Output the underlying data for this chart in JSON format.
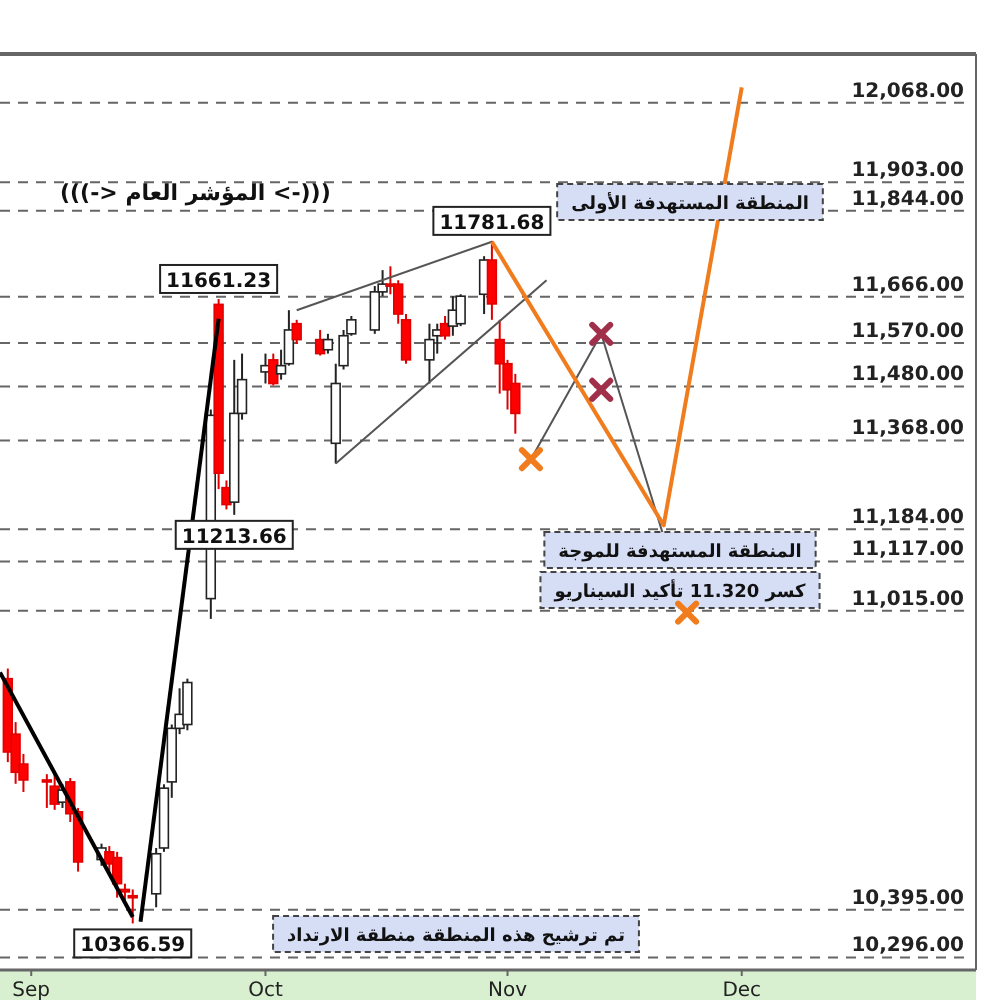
{
  "chart_data": {
    "type": "candlestick",
    "title": "(((-> المؤشر العام <-)))",
    "x": [
      "--08-29",
      "--08-30",
      "--08-31",
      "--09-03",
      "--09-04",
      "--09-05",
      "--09-06",
      "--09-07",
      "--09-10",
      "--09-11",
      "--09-12",
      "--09-13",
      "--09-14",
      "--09-17",
      "--09-18",
      "--09-19",
      "--09-20",
      "--09-21",
      "--09-24",
      "--09-25",
      "--09-26",
      "--09-27",
      "--09-28",
      "--10-01",
      "--10-02",
      "--10-03",
      "--10-04",
      "--10-05",
      "--10-08",
      "--10-09",
      "--10-10",
      "--10-11",
      "--10-12",
      "--10-15",
      "--10-16",
      "--10-17",
      "--10-18",
      "--10-19",
      "--10-22",
      "--10-23",
      "--10-24",
      "--10-25",
      "--10-26",
      "--10-29",
      "--10-30",
      "--10-31",
      "--11-01",
      "--11-02"
    ],
    "ohlc": [
      [
        10874,
        10895,
        10701,
        10722
      ],
      [
        10759,
        10784,
        10656,
        10680
      ],
      [
        10697,
        10718,
        10639,
        10664
      ],
      [
        10664,
        10676,
        10606,
        10660
      ],
      [
        10651,
        10676,
        10602,
        10614
      ],
      [
        10618,
        10655,
        10606,
        10643
      ],
      [
        10660,
        10668,
        10577,
        10594
      ],
      [
        10598,
        10606,
        10474,
        10494
      ],
      [
        10499,
        10532,
        10486,
        10523
      ],
      [
        10515,
        10527,
        10469,
        10490
      ],
      [
        10503,
        10515,
        10420,
        10449
      ],
      [
        10437,
        10449,
        10412,
        10432
      ],
      [
        10424,
        10437,
        10366.59,
        10420
      ],
      [
        10428,
        10523,
        10400,
        10511
      ],
      [
        10523,
        10655,
        10515,
        10647
      ],
      [
        10660,
        10779,
        10627,
        10771
      ],
      [
        10771,
        10854,
        10759,
        10800
      ],
      [
        10779,
        10874,
        10767,
        10866
      ],
      [
        11040,
        11432,
        10998,
        11420
      ],
      [
        11650,
        11661.23,
        11267,
        11300
      ],
      [
        11270,
        11285,
        11225,
        11235
      ],
      [
        11240,
        11535,
        11213.66,
        11424
      ],
      [
        11424,
        11548,
        11411,
        11494
      ],
      [
        11510,
        11548,
        11486,
        11523
      ],
      [
        11535,
        11548,
        11482,
        11486
      ],
      [
        11506,
        11556,
        11494,
        11523
      ],
      [
        11527,
        11638,
        11523,
        11597
      ],
      [
        11610,
        11618,
        11568,
        11577
      ],
      [
        11577,
        11597,
        11544,
        11548
      ],
      [
        11556,
        11589,
        11548,
        11577
      ],
      [
        11362,
        11527,
        11320,
        11486
      ],
      [
        11523,
        11597,
        11515,
        11585
      ],
      [
        11589,
        11626,
        11585,
        11618
      ],
      [
        11597,
        11688,
        11589,
        11676
      ],
      [
        11676,
        11721,
        11667,
        11692
      ],
      [
        11692,
        11729,
        11671,
        11688
      ],
      [
        11692,
        11700,
        11610,
        11630
      ],
      [
        11618,
        11630,
        11527,
        11535
      ],
      [
        11535,
        11610,
        11486,
        11577
      ],
      [
        11585,
        11610,
        11548,
        11597
      ],
      [
        11610,
        11626,
        11577,
        11585
      ],
      [
        11605,
        11667,
        11585,
        11638
      ],
      [
        11610,
        11671,
        11605,
        11667
      ],
      [
        11671,
        11750,
        11630,
        11742
      ],
      [
        11742,
        11781.68,
        11618,
        11651
      ],
      [
        11577,
        11618,
        11465,
        11527
      ],
      [
        11527,
        11535,
        11432,
        11473
      ],
      [
        11486,
        11506,
        11382,
        11424
      ]
    ],
    "xlim": [
      "--08-28",
      "--12-31"
    ],
    "xticks": [
      {
        "value": "--09-01",
        "label": "Sep"
      },
      {
        "value": "--10-01",
        "label": "Oct"
      },
      {
        "value": "--11-01",
        "label": "Nov"
      },
      {
        "value": "--12-01",
        "label": "Dec"
      }
    ],
    "ylim": [
      10270,
      12165
    ],
    "tick_labels": "x",
    "series": [
      {
        "type": "line",
        "color": "#000000",
        "x": [
          "--08-28",
          "--09-14"
        ],
        "values": [
          10887,
          10380
        ]
      },
      {
        "type": "line",
        "color": "#000000",
        "x": [
          "--09-15",
          "--09-25"
        ],
        "values": [
          10370,
          11620
        ]
      },
      {
        "type": "line",
        "color": "#555555",
        "x": [
          "--10-05",
          "--10-30"
        ],
        "values": [
          11638,
          11780
        ]
      },
      {
        "type": "line",
        "color": "#555555",
        "x": [
          "--10-10",
          "--11-06"
        ],
        "values": [
          11320,
          11700
        ]
      },
      {
        "type": "line",
        "color": "#555555",
        "x": [
          "--11-04",
          "--11-13",
          "--11-24"
        ],
        "values": [
          11329,
          11589,
          11011
        ]
      },
      {
        "type": "line",
        "color": "#f07c1e",
        "x": [
          "--10-30",
          "--11-21",
          "--12-01"
        ],
        "values": [
          11780,
          11192,
          12100
        ]
      },
      {
        "type": "scatter",
        "marker": "cross",
        "color": "#f07c1e",
        "x": [
          "--11-04",
          "--11-24"
        ],
        "values": [
          11329,
          11011
        ]
      },
      {
        "type": "scatter",
        "marker": "cross",
        "color": "#a0304a",
        "x": [
          "--11-13",
          "--11-13"
        ],
        "values": [
          11589,
          11473
        ]
      }
    ],
    "ref_lines": [
      {
        "axis": "y",
        "value": 12068,
        "label": "12,068.00"
      },
      {
        "axis": "y",
        "value": 11903,
        "label": "11,903.00"
      },
      {
        "axis": "y",
        "value": 11844,
        "label": "11,844.00"
      },
      {
        "axis": "y",
        "value": 11666,
        "label": "11,666.00"
      },
      {
        "axis": "y",
        "value": 11570,
        "label": "11,570.00"
      },
      {
        "axis": "y",
        "value": 11480,
        "label": "11,480.00"
      },
      {
        "axis": "y",
        "value": 11368,
        "label": "11,368.00"
      },
      {
        "axis": "y",
        "value": 11184,
        "label": "11,184.00"
      },
      {
        "axis": "y",
        "value": 11117,
        "label": "11,117.00"
      },
      {
        "axis": "y",
        "value": 11015,
        "label": "11,015.00"
      },
      {
        "axis": "y",
        "value": 10395,
        "label": "10,395.00"
      },
      {
        "axis": "y",
        "value": 10296,
        "label": "10,296.00"
      }
    ],
    "annotations": [
      {
        "text": "11661.23",
        "x": "--09-25",
        "y": 11661.23
      },
      {
        "text": "11781.68",
        "x": "--10-30",
        "y": 11781.68
      },
      {
        "text": "11213.66",
        "x": "--09-27",
        "y": 11213.66
      },
      {
        "text": "10366.59",
        "x": "--09-14",
        "y": 10366.59
      },
      "المنطقة المستهدفة الأولى",
      "المنطقة المستهدفة للموجة",
      "كسر 11.320 تأكيد السيناريو",
      "تم ترشيح هذه المنطقة منطقة الارتداد"
    ]
  }
}
